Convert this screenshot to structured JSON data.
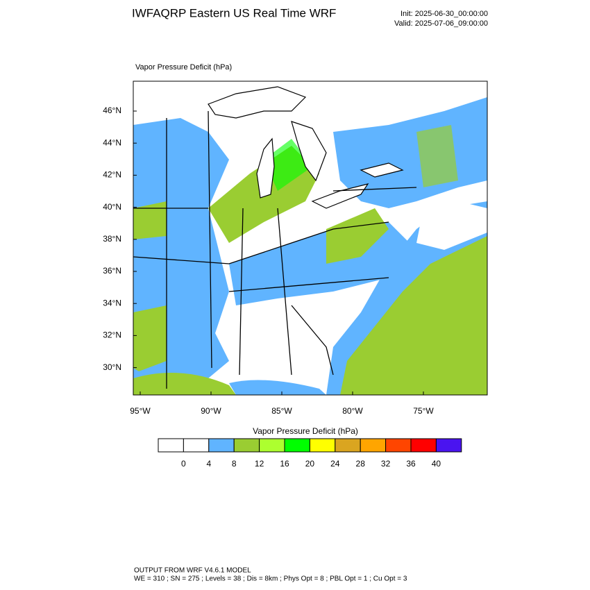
{
  "header": {
    "title": "IWFAQRP Eastern US Real Time WRF",
    "init": "Init: 2025-06-30_00:00:00",
    "valid": "Valid: 2025-07-06_09:00:00"
  },
  "map": {
    "label": "Vapor Pressure Deficit   (hPa)",
    "lat_labels": [
      "46°N",
      "44°N",
      "42°N",
      "40°N",
      "38°N",
      "36°N",
      "34°N",
      "32°N",
      "30°N"
    ],
    "lon_labels": [
      "95°W",
      "90°W",
      "85°W",
      "80°W",
      "75°W"
    ]
  },
  "colorbar": {
    "title": "Vapor Pressure Deficit  (hPa)",
    "colors": [
      "#ffffff",
      "#ffffff",
      "#60b4ff",
      "#9acd32",
      "#adff2f",
      "#00ff00",
      "#ffff00",
      "#daa520",
      "#ffa500",
      "#ff4500",
      "#ff0000",
      "#4a14f0"
    ],
    "labels": [
      "0",
      "4",
      "8",
      "12",
      "16",
      "20",
      "24",
      "28",
      "32",
      "36",
      "40"
    ]
  },
  "footer": {
    "line1": "OUTPUT FROM WRF V4.6.1 MODEL",
    "line2": "WE = 310 ; SN = 275 ; Levels = 38 ; Dis = 8km ; Phys Opt = 8 ; PBL Opt = 1 ; Cu Opt = 3"
  }
}
